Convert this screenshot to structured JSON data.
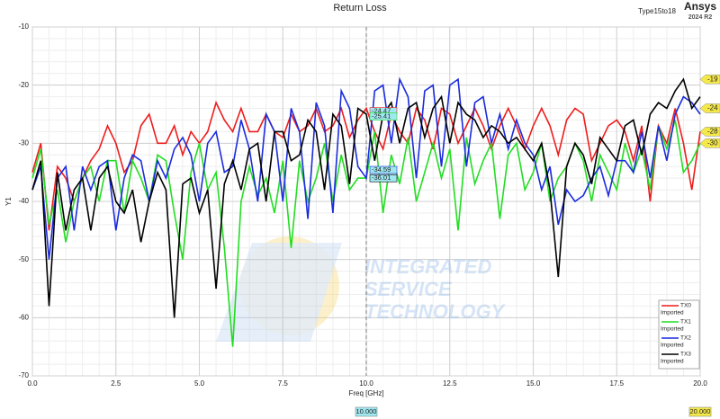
{
  "chart_data": {
    "type": "line",
    "title": "Return Loss",
    "design_name": "Type15to18",
    "brand": "Ansys",
    "version": "2024 R2",
    "x_label": "Freq [GHz]",
    "y_label": "Y1",
    "xlim": [
      0,
      20
    ],
    "ylim": [
      -70,
      -10
    ],
    "xticks": [
      {
        "value": 0,
        "label": "0.0"
      },
      {
        "value": 2.5,
        "label": "2.5"
      },
      {
        "value": 5,
        "label": "5.0"
      },
      {
        "value": 7.5,
        "label": "7.5"
      },
      {
        "value": 10,
        "label": "10.0"
      },
      {
        "value": 12.5,
        "label": "12.5"
      },
      {
        "value": 15,
        "label": "15.0"
      },
      {
        "value": 17.5,
        "label": "17.5"
      },
      {
        "value": 20,
        "label": "20.0"
      }
    ],
    "yticks": [
      -10,
      -20,
      -30,
      -40,
      -50,
      -60,
      -70
    ],
    "grid": true,
    "legend_position": "lower right",
    "x": [
      0,
      0.25,
      0.5,
      0.75,
      1,
      1.25,
      1.5,
      1.75,
      2,
      2.25,
      2.5,
      2.75,
      3,
      3.25,
      3.5,
      3.75,
      4,
      4.25,
      4.5,
      4.75,
      5,
      5.25,
      5.5,
      5.75,
      6,
      6.25,
      6.5,
      6.75,
      7,
      7.25,
      7.5,
      7.75,
      8,
      8.25,
      8.5,
      8.75,
      9,
      9.25,
      9.5,
      9.75,
      10,
      10.25,
      10.5,
      10.75,
      11,
      11.25,
      11.5,
      11.75,
      12,
      12.25,
      12.5,
      12.75,
      13,
      13.25,
      13.5,
      13.75,
      14,
      14.25,
      14.5,
      14.75,
      15,
      15.25,
      15.5,
      15.75,
      16,
      16.25,
      16.5,
      16.75,
      17,
      17.25,
      17.5,
      17.75,
      18,
      18.25,
      18.5,
      18.75,
      19,
      19.25,
      19.5,
      19.75,
      20
    ],
    "series": [
      {
        "name": "TX0",
        "source": "Imported",
        "color": "#ee1c1c",
        "values": [
          -35,
          -30,
          -45,
          -34,
          -36,
          -40,
          -36,
          -33,
          -31,
          -27,
          -30,
          -35,
          -33,
          -27,
          -25,
          -30,
          -30,
          -27,
          -32,
          -28,
          -30,
          -28,
          -23,
          -26,
          -28,
          -24,
          -28,
          -28,
          -25,
          -28,
          -29,
          -25,
          -28,
          -27,
          -24,
          -28,
          -27,
          -24,
          -29,
          -26,
          -24,
          -28,
          -31,
          -25,
          -28,
          -30,
          -24,
          -26,
          -31,
          -24,
          -25,
          -30,
          -27,
          -24,
          -27,
          -31,
          -27,
          -24,
          -27,
          -31,
          -27,
          -24,
          -27,
          -32,
          -26,
          -24,
          -25,
          -33,
          -30,
          -27,
          -26,
          -28,
          -33,
          -27,
          -40,
          -27,
          -30,
          -24,
          -30,
          -38,
          -28
        ]
      },
      {
        "name": "TX1",
        "source": "Imported",
        "color": "#22dd22",
        "values": [
          -36,
          -31,
          -44,
          -38,
          -47,
          -40,
          -36,
          -34,
          -40,
          -33,
          -33,
          -42,
          -33,
          -36,
          -40,
          -32,
          -33,
          -42,
          -50,
          -35,
          -30,
          -38,
          -35,
          -48,
          -65,
          -40,
          -34,
          -39,
          -36,
          -42,
          -33,
          -48,
          -33,
          -40,
          -36,
          -30,
          -40,
          -32,
          -38,
          -36,
          -36,
          -28,
          -42,
          -32,
          -37,
          -29,
          -40,
          -35,
          -30,
          -36,
          -31,
          -45,
          -29,
          -37,
          -33,
          -30,
          -43,
          -32,
          -30,
          -38,
          -35,
          -30,
          -40,
          -36,
          -34,
          -30,
          -33,
          -40,
          -32,
          -35,
          -38,
          -30,
          -35,
          -31,
          -38,
          -27,
          -31,
          -26,
          -35,
          -33,
          -30
        ]
      },
      {
        "name": "TX2",
        "source": "Imported",
        "color": "#1a2bdd",
        "values": [
          -38,
          -34,
          -50,
          -36,
          -34,
          -45,
          -34,
          -38,
          -34,
          -33,
          -45,
          -36,
          -32,
          -33,
          -40,
          -33,
          -36,
          -31,
          -29,
          -32,
          -40,
          -30,
          -28,
          -35,
          -34,
          -26,
          -31,
          -40,
          -25,
          -28,
          -40,
          -24,
          -28,
          -43,
          -23,
          -27,
          -42,
          -21,
          -24,
          -34,
          -36,
          -21,
          -20,
          -30,
          -19,
          -22,
          -36,
          -21,
          -20,
          -34,
          -20,
          -19,
          -34,
          -23,
          -22,
          -30,
          -25,
          -31,
          -26,
          -30,
          -32,
          -38,
          -34,
          -44,
          -38,
          -40,
          -39,
          -36,
          -34,
          -39,
          -33,
          -33,
          -35,
          -28,
          -36,
          -27,
          -33,
          -25,
          -22,
          -23,
          -25
        ]
      },
      {
        "name": "TX3",
        "source": "Imported",
        "color": "#000000",
        "values": [
          -38,
          -33,
          -58,
          -35,
          -45,
          -38,
          -36,
          -45,
          -36,
          -34,
          -40,
          -42,
          -38,
          -47,
          -40,
          -35,
          -38,
          -60,
          -37,
          -36,
          -42,
          -38,
          -55,
          -37,
          -33,
          -38,
          -31,
          -30,
          -40,
          -28,
          -28,
          -33,
          -32,
          -26,
          -28,
          -38,
          -25,
          -27,
          -37,
          -24,
          -25,
          -33,
          -25,
          -23,
          -30,
          -24,
          -23,
          -29,
          -24,
          -22,
          -30,
          -23,
          -25,
          -26,
          -29,
          -27,
          -28,
          -30,
          -29,
          -31,
          -33,
          -30,
          -38,
          -53,
          -34,
          -30,
          -32,
          -37,
          -29,
          -31,
          -33,
          -27,
          -26,
          -32,
          -25,
          -23,
          -24,
          -21,
          -19,
          -24,
          -22
        ]
      }
    ],
    "cursor_values": [
      -24.47,
      -25.41,
      -34.59,
      -36.01
    ],
    "x_markers": [
      {
        "value": 10,
        "label": "10.000"
      },
      {
        "value": 20,
        "label": "20.000"
      }
    ],
    "end_markers": [
      -19,
      -24,
      -28,
      -30
    ]
  },
  "watermark": {
    "lines": [
      "INTEGRATED",
      "SERVICE",
      "TECHNOLOGY"
    ]
  }
}
